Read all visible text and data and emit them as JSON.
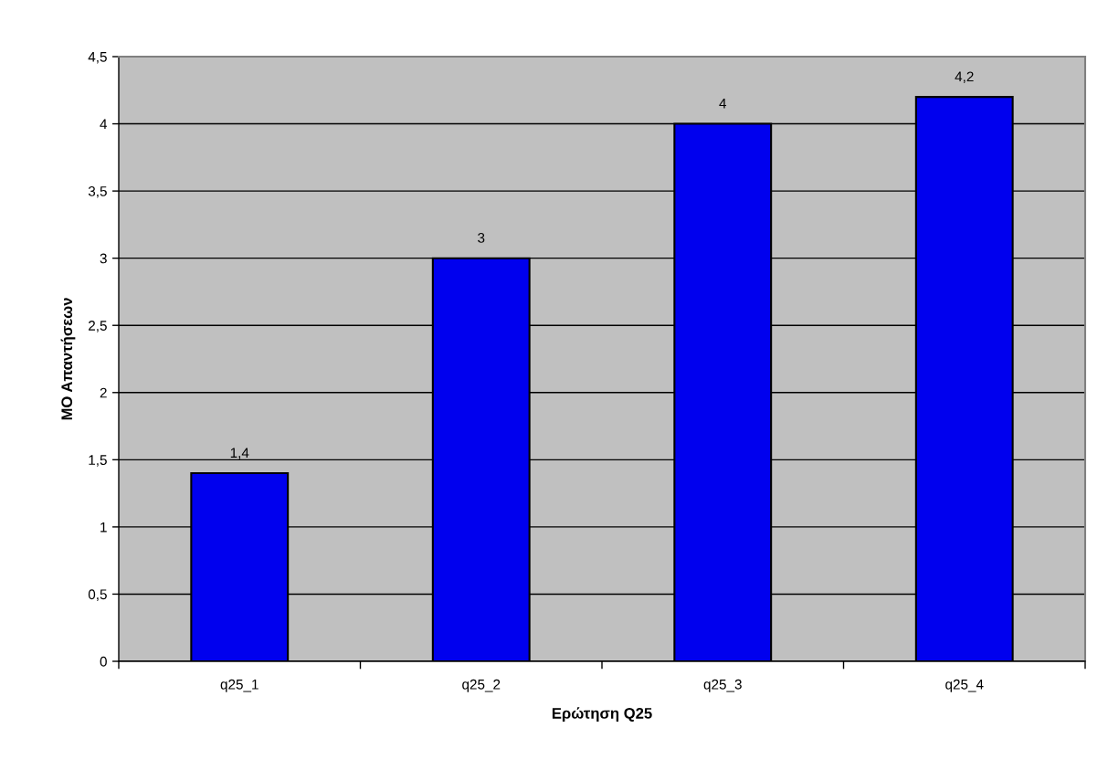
{
  "chart_data": {
    "type": "bar",
    "xlabel": "Ερώτηση Q25",
    "ylabel": "ΜΟ Απαντήσεων",
    "categories": [
      "q25_1",
      "q25_2",
      "q25_3",
      "q25_4"
    ],
    "values": [
      1.4,
      3,
      4,
      4.2
    ],
    "color": "#0000ee",
    "value_labels": [
      "1,4",
      "3",
      "4",
      "4,2"
    ],
    "ylim": [
      0,
      4.5
    ],
    "yticks": [
      0,
      {
        "value": 0.5,
        "label": "0,5"
      },
      1,
      {
        "value": 1.5,
        "label": "1,5"
      },
      2,
      {
        "value": 2.5,
        "label": "2,5"
      },
      3,
      {
        "value": 3.5,
        "label": "3,5"
      },
      4,
      {
        "value": 4.5,
        "label": "4,5"
      }
    ],
    "grid": "y"
  }
}
